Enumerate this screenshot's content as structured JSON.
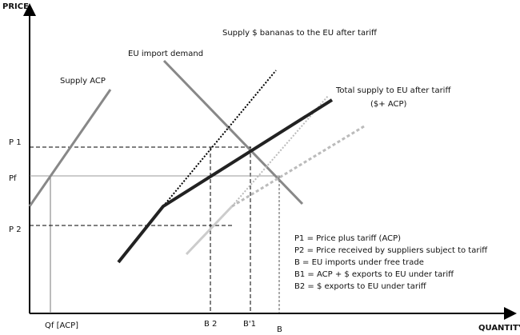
{
  "axes": {
    "y_label": "PRICE",
    "x_label": "QUANTITY"
  },
  "curves": {
    "supply_dollar": "Supply $ bananas to the EU after tariff",
    "demand": "EU import demand",
    "supply_acp": "Supply ACP",
    "total_supply": "Total supply to EU  after tariff",
    "total_supply_note": "($+ ACP)"
  },
  "price_levels": [
    "P 1",
    "Pf",
    "P 2"
  ],
  "quantity_levels": [
    "Qf [ACP]",
    "B 2",
    "B'1",
    "B"
  ],
  "legend": [
    "P1 = Price plus tariff (ACP)",
    "P2 = Price received by suppliers subject to tariff",
    "B = EU imports under free trade",
    "B1  = ACP + $ exports to EU under tariff",
    "B2 = $ exports to EU under tariff"
  ]
}
